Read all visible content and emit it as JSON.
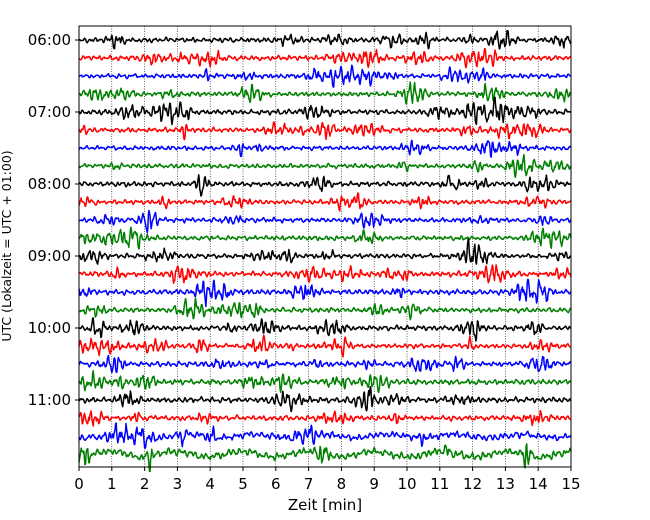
{
  "chart_data": {
    "type": "line",
    "title": "",
    "xlabel": "Zeit  [min]",
    "ylabel": "UTC (Lokalzeit = UTC + 01:00)",
    "xlim": [
      0,
      15
    ],
    "x_ticks": [
      "0",
      "1",
      "2",
      "3",
      "4",
      "5",
      "6",
      "7",
      "8",
      "9",
      "10",
      "11",
      "12",
      "13",
      "14",
      "15"
    ],
    "y_ticks": [
      "06:00",
      "07:00",
      "08:00",
      "09:00",
      "10:00",
      "11:00"
    ],
    "grid": {
      "x": true,
      "style": "dotted",
      "color": "#000000"
    },
    "trace_interval_minutes": 15,
    "colors": [
      "#000000",
      "#ff0000",
      "#0000ff",
      "#008000"
    ],
    "series": [
      {
        "start": "06:00",
        "color": "#000000",
        "amplitude": 0.3
      },
      {
        "start": "06:15",
        "color": "#ff0000",
        "amplitude": 0.3
      },
      {
        "start": "06:30",
        "color": "#0000ff",
        "amplitude": 0.28
      },
      {
        "start": "06:45",
        "color": "#008000",
        "amplitude": 0.28
      },
      {
        "start": "07:00",
        "color": "#000000",
        "amplitude": 0.32
      },
      {
        "start": "07:15",
        "color": "#ff0000",
        "amplitude": 0.3
      },
      {
        "start": "07:30",
        "color": "#0000ff",
        "amplitude": 0.28
      },
      {
        "start": "07:45",
        "color": "#008000",
        "amplitude": 0.28
      },
      {
        "start": "08:00",
        "color": "#000000",
        "amplitude": 0.3
      },
      {
        "start": "08:15",
        "color": "#ff0000",
        "amplitude": 0.28
      },
      {
        "start": "08:30",
        "color": "#0000ff",
        "amplitude": 0.3
      },
      {
        "start": "08:45",
        "color": "#008000",
        "amplitude": 0.28
      },
      {
        "start": "09:00",
        "color": "#000000",
        "amplitude": 0.28
      },
      {
        "start": "09:15",
        "color": "#ff0000",
        "amplitude": 0.32
      },
      {
        "start": "09:30",
        "color": "#0000ff",
        "amplitude": 0.34
      },
      {
        "start": "09:45",
        "color": "#008000",
        "amplitude": 0.3
      },
      {
        "start": "10:00",
        "color": "#000000",
        "amplitude": 0.3
      },
      {
        "start": "10:15",
        "color": "#ff0000",
        "amplitude": 0.28
      },
      {
        "start": "10:30",
        "color": "#0000ff",
        "amplitude": 0.32
      },
      {
        "start": "10:45",
        "color": "#008000",
        "amplitude": 0.34
      },
      {
        "start": "11:00",
        "color": "#000000",
        "amplitude": 0.34
      },
      {
        "start": "11:15",
        "color": "#ff0000",
        "amplitude": 0.32
      },
      {
        "start": "11:30",
        "color": "#0000ff",
        "amplitude": 0.42
      },
      {
        "start": "11:45",
        "color": "#008000",
        "amplitude": 0.48
      }
    ]
  }
}
